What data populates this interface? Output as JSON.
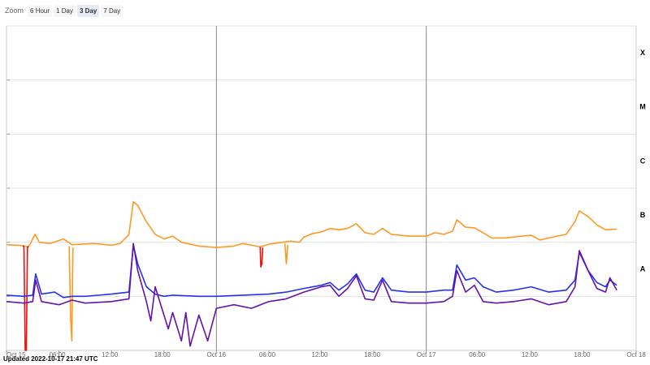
{
  "zoom": {
    "label": "Zoom",
    "buttons": [
      "6 Hour",
      "1 Day",
      "3 Day",
      "7 Day"
    ],
    "active": "3 Day"
  },
  "updated": "Updated 2022-10-17 21:47 UTC",
  "colors": {
    "long_flux": "#ff9922",
    "long_flux_dip": "#ee1111",
    "short_flux": "#2233ee",
    "short_flux_2": "#6611aa",
    "grid": "#e3e3e3",
    "day_line": "#888888"
  },
  "chart_data": {
    "type": "line",
    "title": "",
    "xlabel": "",
    "ylabel": "",
    "y_scale": "log",
    "ylim": [
      1e-09,
      0.001
    ],
    "x_range": [
      "2022-10-15 00:00",
      "2022-10-18 00:00"
    ],
    "x_tick_labels": [
      "Oct 15",
      "06:00",
      "12:00",
      "18:00",
      "Oct 16",
      "06:00",
      "12:00",
      "18:00",
      "Oct 17",
      "06:00",
      "12:00",
      "18:00",
      "Oct 18"
    ],
    "class_labels": [
      {
        "label": "A",
        "flux": 1e-08
      },
      {
        "label": "B",
        "flux": 1e-07
      },
      {
        "label": "C",
        "flux": 1e-06
      },
      {
        "label": "M",
        "flux": 1e-05
      },
      {
        "label": "X",
        "flux": 0.0001
      }
    ],
    "grid": true,
    "series": [
      {
        "key": "long",
        "points": [
          [
            "2022-10-15 00:00",
            9e-08
          ],
          [
            "2022-10-15 01:30",
            8.8e-08
          ],
          [
            "2022-10-15 02:30",
            8.2e-08
          ],
          [
            "2022-10-15 02:45",
            9.5e-08
          ],
          [
            "2022-10-15 03:15",
            1.4e-07
          ],
          [
            "2022-10-15 03:45",
            1e-07
          ],
          [
            "2022-10-15 05:00",
            9.5e-08
          ],
          [
            "2022-10-15 06:30",
            1.15e-07
          ],
          [
            "2022-10-15 07:30",
            9e-08
          ],
          [
            "2022-10-15 10:00",
            9.5e-08
          ],
          [
            "2022-10-15 12:00",
            8.8e-08
          ],
          [
            "2022-10-15 13:00",
            9.5e-08
          ],
          [
            "2022-10-15 14:00",
            1.4e-07
          ],
          [
            "2022-10-15 14:30",
            5.6e-07
          ],
          [
            "2022-10-15 15:00",
            4.8e-07
          ],
          [
            "2022-10-15 16:00",
            2.4e-07
          ],
          [
            "2022-10-15 17:00",
            1.4e-07
          ],
          [
            "2022-10-15 18:00",
            1.15e-07
          ],
          [
            "2022-10-15 19:00",
            1.3e-07
          ],
          [
            "2022-10-15 20:00",
            1e-07
          ],
          [
            "2022-10-15 22:00",
            8.5e-08
          ],
          [
            "2022-10-16 00:00",
            8e-08
          ],
          [
            "2022-10-16 02:00",
            8.5e-08
          ],
          [
            "2022-10-16 03:00",
            9.5e-08
          ],
          [
            "2022-10-16 05:00",
            8.2e-08
          ],
          [
            "2022-10-16 06:00",
            9.2e-08
          ],
          [
            "2022-10-16 07:30",
            1e-07
          ],
          [
            "2022-10-16 08:30",
            1.05e-07
          ],
          [
            "2022-10-16 09:30",
            1e-07
          ],
          [
            "2022-10-16 10:00",
            1.25e-07
          ],
          [
            "2022-10-16 11:00",
            1.45e-07
          ],
          [
            "2022-10-16 12:00",
            1.55e-07
          ],
          [
            "2022-10-16 13:00",
            1.8e-07
          ],
          [
            "2022-10-16 14:00",
            1.7e-07
          ],
          [
            "2022-10-16 15:00",
            1.8e-07
          ],
          [
            "2022-10-16 16:00",
            2.2e-07
          ],
          [
            "2022-10-16 17:00",
            1.5e-07
          ],
          [
            "2022-10-16 18:00",
            1.4e-07
          ],
          [
            "2022-10-16 19:00",
            1.8e-07
          ],
          [
            "2022-10-16 20:00",
            1.4e-07
          ],
          [
            "2022-10-16 22:00",
            1.3e-07
          ],
          [
            "2022-10-17 00:00",
            1.3e-07
          ],
          [
            "2022-10-17 01:00",
            1.5e-07
          ],
          [
            "2022-10-17 02:00",
            1.4e-07
          ],
          [
            "2022-10-17 03:00",
            1.6e-07
          ],
          [
            "2022-10-17 03:30",
            2.6e-07
          ],
          [
            "2022-10-17 04:30",
            1.9e-07
          ],
          [
            "2022-10-17 05:30",
            1.85e-07
          ],
          [
            "2022-10-17 06:30",
            1.5e-07
          ],
          [
            "2022-10-17 07:30",
            1.2e-07
          ],
          [
            "2022-10-17 09:00",
            1.2e-07
          ],
          [
            "2022-10-17 10:00",
            1.25e-07
          ],
          [
            "2022-10-17 11:00",
            1.3e-07
          ],
          [
            "2022-10-17 12:00",
            1.35e-07
          ],
          [
            "2022-10-17 13:00",
            1.1e-07
          ],
          [
            "2022-10-17 14:00",
            1.2e-07
          ],
          [
            "2022-10-17 15:00",
            1.3e-07
          ],
          [
            "2022-10-17 16:00",
            1.4e-07
          ],
          [
            "2022-10-17 17:00",
            2.4e-07
          ],
          [
            "2022-10-17 17:30",
            3.8e-07
          ],
          [
            "2022-10-17 18:30",
            3e-07
          ],
          [
            "2022-10-17 19:30",
            2.1e-07
          ],
          [
            "2022-10-17 20:30",
            1.7e-07
          ],
          [
            "2022-10-17 21:47",
            1.75e-07
          ]
        ]
      },
      {
        "key": "long_dip",
        "points": [
          [
            "2022-10-15 01:55",
            8.8e-08
          ],
          [
            "2022-10-15 02:00",
            8e-08
          ],
          [
            "2022-10-15 02:08",
            1e-09
          ],
          [
            "2022-10-15 02:16",
            1e-09
          ],
          [
            "2022-10-15 02:24",
            8e-08
          ],
          [
            "2022-10-15 02:30",
            8.5e-08
          ]
        ]
      },
      {
        "key": "long_dip",
        "points": [
          [
            "2022-10-16 05:00",
            8.2e-08
          ],
          [
            "2022-10-16 05:05",
            3.5e-08
          ],
          [
            "2022-10-16 05:12",
            4e-08
          ],
          [
            "2022-10-16 05:18",
            8e-08
          ]
        ]
      },
      {
        "key": "long_orange_dip",
        "points": [
          [
            "2022-10-15 07:10",
            8.5e-08
          ],
          [
            "2022-10-15 07:20",
            4e-09
          ],
          [
            "2022-10-15 07:28",
            1.5e-09
          ],
          [
            "2022-10-15 07:36",
            8e-08
          ]
        ]
      },
      {
        "key": "long_orange_dip",
        "points": [
          [
            "2022-10-16 07:50",
            9.5e-08
          ],
          [
            "2022-10-16 08:00",
            4e-08
          ],
          [
            "2022-10-16 08:10",
            9e-08
          ]
        ]
      },
      {
        "key": "short",
        "points": [
          [
            "2022-10-15 00:00",
            1.05e-08
          ],
          [
            "2022-10-15 02:00",
            1e-08
          ],
          [
            "2022-10-15 03:00",
            1.05e-08
          ],
          [
            "2022-10-15 03:20",
            2.6e-08
          ],
          [
            "2022-10-15 04:00",
            1.1e-08
          ],
          [
            "2022-10-15 05:30",
            1.2e-08
          ],
          [
            "2022-10-15 06:30",
            9.5e-09
          ],
          [
            "2022-10-15 07:30",
            1e-08
          ],
          [
            "2022-10-15 09:00",
            1e-08
          ],
          [
            "2022-10-15 12:00",
            1.1e-08
          ],
          [
            "2022-10-15 14:00",
            1.2e-08
          ],
          [
            "2022-10-15 14:30",
            8.8e-08
          ],
          [
            "2022-10-15 15:00",
            4e-08
          ],
          [
            "2022-10-15 16:00",
            1.5e-08
          ],
          [
            "2022-10-15 17:00",
            1.1e-08
          ],
          [
            "2022-10-15 18:00",
            1e-08
          ],
          [
            "2022-10-15 19:00",
            1.05e-08
          ],
          [
            "2022-10-15 22:00",
            1e-08
          ],
          [
            "2022-10-16 00:00",
            1e-08
          ],
          [
            "2022-10-16 03:00",
            1.05e-08
          ],
          [
            "2022-10-16 06:00",
            1.1e-08
          ],
          [
            "2022-10-16 08:00",
            1.2e-08
          ],
          [
            "2022-10-16 10:00",
            1.4e-08
          ],
          [
            "2022-10-16 12:00",
            1.6e-08
          ],
          [
            "2022-10-16 13:00",
            1.8e-08
          ],
          [
            "2022-10-16 14:00",
            1.3e-08
          ],
          [
            "2022-10-16 15:00",
            1.7e-08
          ],
          [
            "2022-10-16 16:00",
            2.6e-08
          ],
          [
            "2022-10-16 17:00",
            1.3e-08
          ],
          [
            "2022-10-16 18:00",
            1.2e-08
          ],
          [
            "2022-10-16 19:00",
            2.2e-08
          ],
          [
            "2022-10-16 20:00",
            1.3e-08
          ],
          [
            "2022-10-16 22:00",
            1.2e-08
          ],
          [
            "2022-10-17 00:00",
            1.2e-08
          ],
          [
            "2022-10-17 02:00",
            1.3e-08
          ],
          [
            "2022-10-17 03:00",
            1.3e-08
          ],
          [
            "2022-10-17 03:30",
            3.8e-08
          ],
          [
            "2022-10-17 04:30",
            2e-08
          ],
          [
            "2022-10-17 05:30",
            2.2e-08
          ],
          [
            "2022-10-17 06:30",
            1.5e-08
          ],
          [
            "2022-10-17 08:00",
            1.2e-08
          ],
          [
            "2022-10-17 10:00",
            1.3e-08
          ],
          [
            "2022-10-17 12:00",
            1.5e-08
          ],
          [
            "2022-10-17 14:00",
            1.2e-08
          ],
          [
            "2022-10-17 16:00",
            1.3e-08
          ],
          [
            "2022-10-17 17:00",
            2e-08
          ],
          [
            "2022-10-17 17:30",
            6.5e-08
          ],
          [
            "2022-10-17 18:30",
            3e-08
          ],
          [
            "2022-10-17 19:30",
            1.8e-08
          ],
          [
            "2022-10-17 20:30",
            1.5e-08
          ],
          [
            "2022-10-17 21:00",
            2e-08
          ],
          [
            "2022-10-17 21:47",
            1.6e-08
          ]
        ]
      },
      {
        "key": "short_2",
        "points": [
          [
            "2022-10-15 00:00",
            8e-09
          ],
          [
            "2022-10-15 02:00",
            7.5e-09
          ],
          [
            "2022-10-15 03:00",
            8e-09
          ],
          [
            "2022-10-15 03:20",
            2e-08
          ],
          [
            "2022-10-15 04:00",
            8e-09
          ],
          [
            "2022-10-15 06:00",
            7e-09
          ],
          [
            "2022-10-15 07:30",
            8.5e-09
          ],
          [
            "2022-10-15 09:00",
            7.5e-09
          ],
          [
            "2022-10-15 12:00",
            8e-09
          ],
          [
            "2022-10-15 14:00",
            9e-09
          ],
          [
            "2022-10-15 14:30",
            9.5e-08
          ],
          [
            "2022-10-15 15:00",
            3e-08
          ],
          [
            "2022-10-15 16:00",
            8e-09
          ],
          [
            "2022-10-15 16:30",
            3.5e-09
          ],
          [
            "2022-10-15 17:00",
            1.5e-08
          ],
          [
            "2022-10-15 18:00",
            4.5e-09
          ],
          [
            "2022-10-15 18:30",
            2.5e-09
          ],
          [
            "2022-10-15 19:00",
            5e-09
          ],
          [
            "2022-10-15 20:00",
            1.5e-09
          ],
          [
            "2022-10-15 20:30",
            5e-09
          ],
          [
            "2022-10-15 21:00",
            1.2e-09
          ],
          [
            "2022-10-15 22:00",
            4.5e-09
          ],
          [
            "2022-10-15 23:00",
            1.5e-09
          ],
          [
            "2022-10-16 00:00",
            6e-09
          ],
          [
            "2022-10-16 02:00",
            7e-09
          ],
          [
            "2022-10-16 04:00",
            6e-09
          ],
          [
            "2022-10-16 06:00",
            8e-09
          ],
          [
            "2022-10-16 08:00",
            9e-09
          ],
          [
            "2022-10-16 10:00",
            1.2e-08
          ],
          [
            "2022-10-16 12:00",
            1.5e-08
          ],
          [
            "2022-10-16 13:00",
            1.6e-08
          ],
          [
            "2022-10-16 14:00",
            1e-08
          ],
          [
            "2022-10-16 15:00",
            1.4e-08
          ],
          [
            "2022-10-16 16:00",
            2.4e-08
          ],
          [
            "2022-10-16 17:00",
            9e-09
          ],
          [
            "2022-10-16 18:00",
            8.5e-09
          ],
          [
            "2022-10-16 19:00",
            2e-08
          ],
          [
            "2022-10-16 20:00",
            8e-09
          ],
          [
            "2022-10-16 22:00",
            7.5e-09
          ],
          [
            "2022-10-17 00:00",
            7.5e-09
          ],
          [
            "2022-10-17 02:00",
            8e-09
          ],
          [
            "2022-10-17 03:00",
            1e-08
          ],
          [
            "2022-10-17 03:30",
            3e-08
          ],
          [
            "2022-10-17 04:30",
            1.2e-08
          ],
          [
            "2022-10-17 05:30",
            1.6e-08
          ],
          [
            "2022-10-17 06:30",
            8e-09
          ],
          [
            "2022-10-17 08:00",
            7.5e-09
          ],
          [
            "2022-10-17 10:00",
            8e-09
          ],
          [
            "2022-10-17 12:00",
            9e-09
          ],
          [
            "2022-10-17 14:00",
            7e-09
          ],
          [
            "2022-10-17 16:00",
            8e-09
          ],
          [
            "2022-10-17 17:00",
            1.5e-08
          ],
          [
            "2022-10-17 17:30",
            7e-08
          ],
          [
            "2022-10-17 18:30",
            3e-08
          ],
          [
            "2022-10-17 19:30",
            1.4e-08
          ],
          [
            "2022-10-17 20:30",
            1.2e-08
          ],
          [
            "2022-10-17 21:00",
            2.2e-08
          ],
          [
            "2022-10-17 21:47",
            1.3e-08
          ]
        ]
      }
    ]
  }
}
